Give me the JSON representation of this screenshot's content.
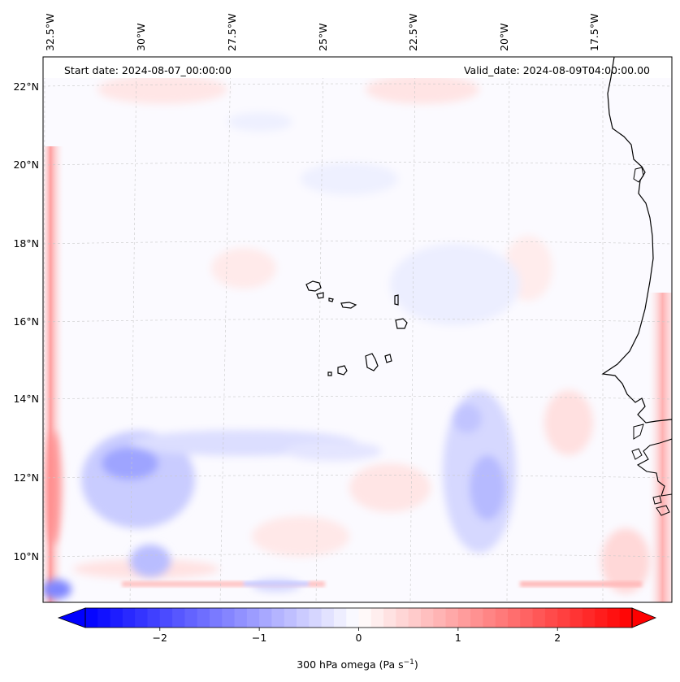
{
  "header": {
    "start_date": "Start date: 2024-08-07_00:00:00",
    "valid_date": "Valid_date: 2024-08-09T04:00:00.00"
  },
  "axes": {
    "lon_labels": [
      "32.5°W",
      "30°W",
      "27.5°W",
      "25°W",
      "22.5°W",
      "20°W",
      "17.5°W"
    ],
    "lat_labels": [
      "22°N",
      "20°N",
      "18°N",
      "16°N",
      "14°N",
      "12°N",
      "10°N"
    ]
  },
  "colorbar": {
    "label_main": "300 hPa omega (Pa s",
    "label_exp": "−1",
    "label_close": ")",
    "ticks": [
      "−2",
      "−1",
      "0",
      "1",
      "2"
    ],
    "tick_values": [
      -2,
      -1,
      0,
      1,
      2
    ],
    "range": [
      -2.75,
      2.75
    ],
    "negative_color": "#0000ff",
    "positive_color": "#ff0000",
    "zero_color": "#ffffff"
  }
}
